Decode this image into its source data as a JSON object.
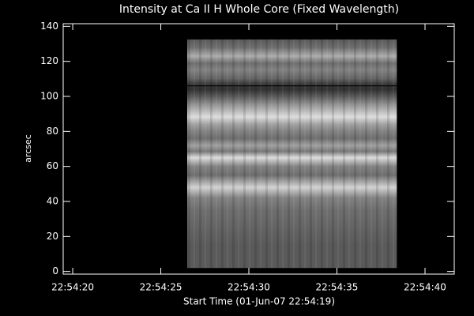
{
  "chart_data": {
    "type": "image",
    "title": "Intensity at Ca II H Whole Core (Fixed Wavelength)",
    "x_label": "Start Time (01-Jun-07 22:54:19)",
    "y_label": "arcsec",
    "xlim": [
      19.46,
      41.66
    ],
    "xticks": [
      {
        "value": 20,
        "label": "22:54:20"
      },
      {
        "value": 25,
        "label": "22:54:25"
      },
      {
        "value": 30,
        "label": "22:54:30"
      },
      {
        "value": 35,
        "label": "22:54:35"
      },
      {
        "value": 40,
        "label": "22:54:40"
      }
    ],
    "ylim": [
      -1.5,
      141.5
    ],
    "yticks": [
      0,
      20,
      40,
      60,
      80,
      100,
      120,
      140
    ],
    "image_x": [
      26.5,
      38.4
    ],
    "image_y": [
      2,
      132.5
    ],
    "hline": 106
  }
}
